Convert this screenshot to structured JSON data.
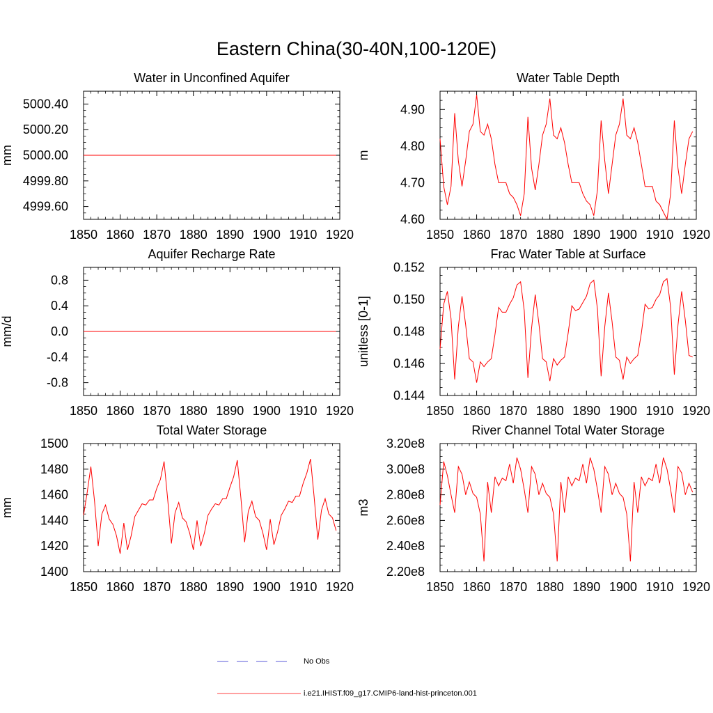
{
  "figure": {
    "title": "Eastern China(30-40N,100-120E)",
    "legend": [
      {
        "label": "No Obs",
        "color": "#2222cc",
        "style": "dashed"
      },
      {
        "label": "i.e21.IHIST.f09_g17.CMIP6-land-hist-princeton.001",
        "color": "#ff0000",
        "style": "solid"
      }
    ]
  },
  "chart_data": [
    {
      "type": "line",
      "title": "Water in Unconfined Aquifer",
      "ylabel": "mm",
      "xlim": [
        1850,
        1920
      ],
      "ylim": [
        4999.5,
        5000.5
      ],
      "yticks": [
        4999.6,
        4999.8,
        5000.0,
        5000.2,
        5000.4
      ],
      "ytick_labels": [
        "4999.60",
        "4999.80",
        "5000.00",
        "5000.20",
        "5000.40"
      ],
      "xticks": [
        1850,
        1860,
        1870,
        1880,
        1890,
        1900,
        1910,
        1920
      ],
      "xtick_labels": [
        "1850",
        "1860",
        "1870",
        "1880",
        "1890",
        "1900",
        "1910",
        "1920"
      ],
      "x_start": 1850,
      "series": [
        {
          "color": "#ff0000",
          "values": [
            5000,
            5000,
            5000,
            5000,
            5000,
            5000,
            5000,
            5000,
            5000,
            5000,
            5000,
            5000,
            5000,
            5000,
            5000,
            5000,
            5000,
            5000,
            5000,
            5000,
            5000,
            5000,
            5000,
            5000,
            5000,
            5000,
            5000,
            5000,
            5000,
            5000,
            5000,
            5000,
            5000,
            5000,
            5000,
            5000,
            5000,
            5000,
            5000,
            5000,
            5000,
            5000,
            5000,
            5000,
            5000,
            5000,
            5000,
            5000,
            5000,
            5000,
            5000,
            5000,
            5000,
            5000,
            5000,
            5000,
            5000,
            5000,
            5000,
            5000,
            5000,
            5000,
            5000,
            5000,
            5000,
            5000,
            5000,
            5000,
            5000,
            5000
          ]
        }
      ]
    },
    {
      "type": "line",
      "title": "Water Table Depth",
      "ylabel": "m",
      "xlim": [
        1850,
        1920
      ],
      "ylim": [
        4.6,
        4.95
      ],
      "yticks": [
        4.6,
        4.7,
        4.8,
        4.9
      ],
      "ytick_labels": [
        "4.60",
        "4.70",
        "4.80",
        "4.90"
      ],
      "xticks": [
        1850,
        1860,
        1870,
        1880,
        1890,
        1900,
        1910,
        1920
      ],
      "xtick_labels": [
        "1850",
        "1860",
        "1870",
        "1880",
        "1890",
        "1900",
        "1910",
        "1920"
      ],
      "x_start": 1850,
      "series": [
        {
          "color": "#ff0000",
          "values": [
            4.82,
            4.69,
            4.64,
            4.69,
            4.89,
            4.76,
            4.69,
            4.76,
            4.84,
            4.86,
            4.94,
            4.84,
            4.83,
            4.86,
            4.82,
            4.75,
            4.7,
            4.7,
            4.7,
            4.67,
            4.66,
            4.64,
            4.61,
            4.67,
            4.88,
            4.74,
            4.68,
            4.75,
            4.83,
            4.86,
            4.93,
            4.83,
            4.82,
            4.85,
            4.81,
            4.75,
            4.7,
            4.7,
            4.7,
            4.67,
            4.65,
            4.64,
            4.61,
            4.68,
            4.87,
            4.76,
            4.67,
            4.75,
            4.83,
            4.86,
            4.93,
            4.83,
            4.82,
            4.85,
            4.81,
            4.75,
            4.69,
            4.69,
            4.69,
            4.65,
            4.64,
            4.62,
            4.6,
            4.67,
            4.87,
            4.74,
            4.67,
            4.75,
            4.82,
            4.84
          ]
        }
      ]
    },
    {
      "type": "line",
      "title": "Aquifer Recharge Rate",
      "ylabel": "mm/d",
      "xlim": [
        1850,
        1920
      ],
      "ylim": [
        -1.0,
        1.0
      ],
      "yticks": [
        -0.8,
        -0.4,
        0.0,
        0.4,
        0.8
      ],
      "ytick_labels": [
        "-0.8",
        "-0.4",
        "0.0",
        "0.4",
        "0.8"
      ],
      "xticks": [
        1850,
        1860,
        1870,
        1880,
        1890,
        1900,
        1910,
        1920
      ],
      "xtick_labels": [
        "1850",
        "1860",
        "1870",
        "1880",
        "1890",
        "1900",
        "1910",
        "1920"
      ],
      "x_start": 1850,
      "series": [
        {
          "color": "#ff0000",
          "values": [
            0,
            0,
            0,
            0,
            0,
            0,
            0,
            0,
            0,
            0,
            0,
            0,
            0,
            0,
            0,
            0,
            0,
            0,
            0,
            0,
            0,
            0,
            0,
            0,
            0,
            0,
            0,
            0,
            0,
            0,
            0,
            0,
            0,
            0,
            0,
            0,
            0,
            0,
            0,
            0,
            0,
            0,
            0,
            0,
            0,
            0,
            0,
            0,
            0,
            0,
            0,
            0,
            0,
            0,
            0,
            0,
            0,
            0,
            0,
            0,
            0,
            0,
            0,
            0,
            0,
            0,
            0,
            0,
            0,
            0
          ]
        }
      ]
    },
    {
      "type": "line",
      "title": "Frac Water Table at Surface",
      "ylabel": "unitless [0-1]",
      "xlim": [
        1850,
        1920
      ],
      "ylim": [
        0.144,
        0.152
      ],
      "yticks": [
        0.144,
        0.146,
        0.148,
        0.15,
        0.152
      ],
      "ytick_labels": [
        "0.144",
        "0.146",
        "0.148",
        "0.150",
        "0.152"
      ],
      "xticks": [
        1850,
        1860,
        1870,
        1880,
        1890,
        1900,
        1910,
        1920
      ],
      "xtick_labels": [
        "1850",
        "1860",
        "1870",
        "1880",
        "1890",
        "1900",
        "1910",
        "1920"
      ],
      "x_start": 1850,
      "series": [
        {
          "color": "#ff0000",
          "values": [
            0.1469,
            0.1497,
            0.1505,
            0.1488,
            0.145,
            0.1483,
            0.1502,
            0.1484,
            0.1463,
            0.1461,
            0.1448,
            0.1461,
            0.1458,
            0.1461,
            0.1463,
            0.1478,
            0.1495,
            0.1492,
            0.1492,
            0.1497,
            0.1501,
            0.1509,
            0.1511,
            0.1493,
            0.1451,
            0.1482,
            0.1503,
            0.1485,
            0.1463,
            0.1461,
            0.1449,
            0.1463,
            0.1459,
            0.1462,
            0.1464,
            0.1479,
            0.1496,
            0.1493,
            0.1494,
            0.1498,
            0.1502,
            0.151,
            0.1512,
            0.1494,
            0.1452,
            0.1483,
            0.1504,
            0.1486,
            0.1464,
            0.1462,
            0.145,
            0.1464,
            0.146,
            0.1463,
            0.1465,
            0.1479,
            0.1497,
            0.1494,
            0.1495,
            0.15,
            0.1503,
            0.1511,
            0.1513,
            0.1495,
            0.1453,
            0.1484,
            0.1505,
            0.1487,
            0.1465,
            0.1464
          ]
        }
      ]
    },
    {
      "type": "line",
      "title": "Total Water Storage",
      "ylabel": "mm",
      "xlim": [
        1850,
        1920
      ],
      "ylim": [
        1400,
        1500
      ],
      "yticks": [
        1400,
        1420,
        1440,
        1460,
        1480,
        1500
      ],
      "ytick_labels": [
        "1400",
        "1420",
        "1440",
        "1460",
        "1480",
        "1500"
      ],
      "xticks": [
        1850,
        1860,
        1870,
        1880,
        1890,
        1900,
        1910,
        1920
      ],
      "xtick_labels": [
        "1850",
        "1860",
        "1870",
        "1880",
        "1890",
        "1900",
        "1910",
        "1920"
      ],
      "x_start": 1850,
      "series": [
        {
          "color": "#ff0000",
          "values": [
            1444,
            1462,
            1482,
            1455,
            1420,
            1445,
            1452,
            1441,
            1437,
            1428,
            1414,
            1438,
            1417,
            1428,
            1443,
            1448,
            1453,
            1452,
            1456,
            1456,
            1465,
            1472,
            1486,
            1456,
            1422,
            1446,
            1454,
            1442,
            1439,
            1430,
            1417,
            1440,
            1420,
            1430,
            1444,
            1449,
            1453,
            1452,
            1457,
            1457,
            1466,
            1474,
            1487,
            1457,
            1423,
            1447,
            1455,
            1443,
            1440,
            1430,
            1417,
            1441,
            1421,
            1431,
            1444,
            1449,
            1455,
            1454,
            1459,
            1459,
            1469,
            1477,
            1488,
            1458,
            1425,
            1448,
            1457,
            1445,
            1442,
            1432
          ]
        }
      ]
    },
    {
      "type": "line",
      "title": "River Channel Total Water Storage",
      "ylabel": "m3",
      "xlim": [
        1850,
        1920
      ],
      "ylim": [
        220000000.0,
        320000000.0
      ],
      "yticks": [
        220000000.0,
        240000000.0,
        260000000.0,
        280000000.0,
        300000000.0,
        320000000.0
      ],
      "ytick_labels": [
        "2.20e8",
        "2.40e8",
        "2.60e8",
        "2.80e8",
        "3.00e8",
        "3.20e8"
      ],
      "xticks": [
        1850,
        1860,
        1870,
        1880,
        1890,
        1900,
        1910,
        1920
      ],
      "xtick_labels": [
        "1850",
        "1860",
        "1870",
        "1880",
        "1890",
        "1900",
        "1910",
        "1920"
      ],
      "x_start": 1850,
      "series": [
        {
          "color": "#ff0000",
          "values": [
            272000000.0,
            306000000.0,
            295000000.0,
            280000000.0,
            266000000.0,
            302000000.0,
            296000000.0,
            280000000.0,
            290000000.0,
            281000000.0,
            278000000.0,
            265000000.0,
            228000000.0,
            290000000.0,
            266000000.0,
            294000000.0,
            287000000.0,
            293000000.0,
            291000000.0,
            304000000.0,
            289000000.0,
            309000000.0,
            300000000.0,
            284000000.0,
            266000000.0,
            302000000.0,
            296000000.0,
            280000000.0,
            289000000.0,
            281000000.0,
            278000000.0,
            265000000.0,
            228000000.0,
            290000000.0,
            266000000.0,
            294000000.0,
            287000000.0,
            293000000.0,
            291000000.0,
            304000000.0,
            289000000.0,
            309000000.0,
            300000000.0,
            284000000.0,
            266000000.0,
            302000000.0,
            296000000.0,
            280000000.0,
            289000000.0,
            281000000.0,
            278000000.0,
            265000000.0,
            228000000.0,
            290000000.0,
            266000000.0,
            294000000.0,
            287000000.0,
            293000000.0,
            291000000.0,
            304000000.0,
            289000000.0,
            309000000.0,
            300000000.0,
            284000000.0,
            266000000.0,
            302000000.0,
            297000000.0,
            280000000.0,
            289000000.0,
            282000000.0
          ]
        }
      ]
    }
  ]
}
